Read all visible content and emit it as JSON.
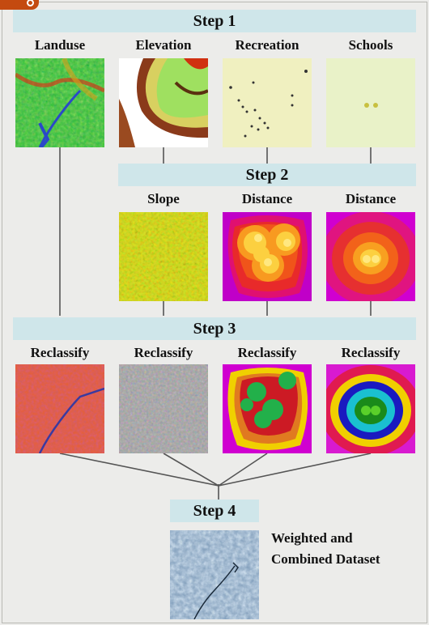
{
  "steps": {
    "step1": "Step 1",
    "step2": "Step 2",
    "step3": "Step 3",
    "step4": "Step 4"
  },
  "row1": [
    "Landuse",
    "Elevation",
    "Recreation",
    "Schools"
  ],
  "row2": [
    "Slope",
    "Distance",
    "Distance"
  ],
  "row3": [
    "Reclassify",
    "Reclassify",
    "Reclassify",
    "Reclassify"
  ],
  "result": {
    "line1": "Weighted and",
    "line2": "Combined Dataset"
  },
  "colors": {
    "banner": "#cfe6ea",
    "connector": "#555555",
    "badge": "#c44a10"
  }
}
